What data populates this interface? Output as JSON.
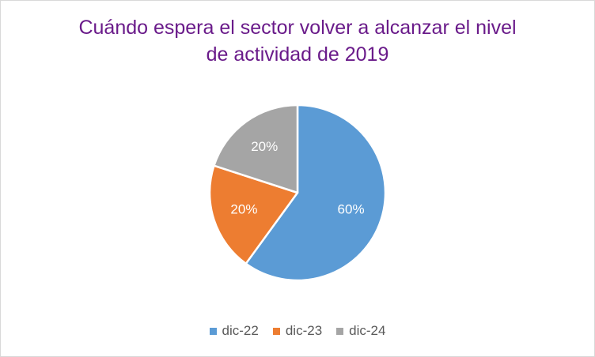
{
  "chart_data": {
    "type": "pie",
    "title_lines": [
      "Cuándo espera el sector volver a alcanzar el nivel",
      "de actividad de 2019"
    ],
    "categories": [
      "dic-22",
      "dic-23",
      "dic-24"
    ],
    "values": [
      60,
      20,
      20
    ],
    "value_labels": [
      "60%",
      "20%",
      "20%"
    ],
    "colors": [
      "#5b9bd5",
      "#ed7d31",
      "#a5a5a5"
    ],
    "legend_position": "bottom"
  }
}
